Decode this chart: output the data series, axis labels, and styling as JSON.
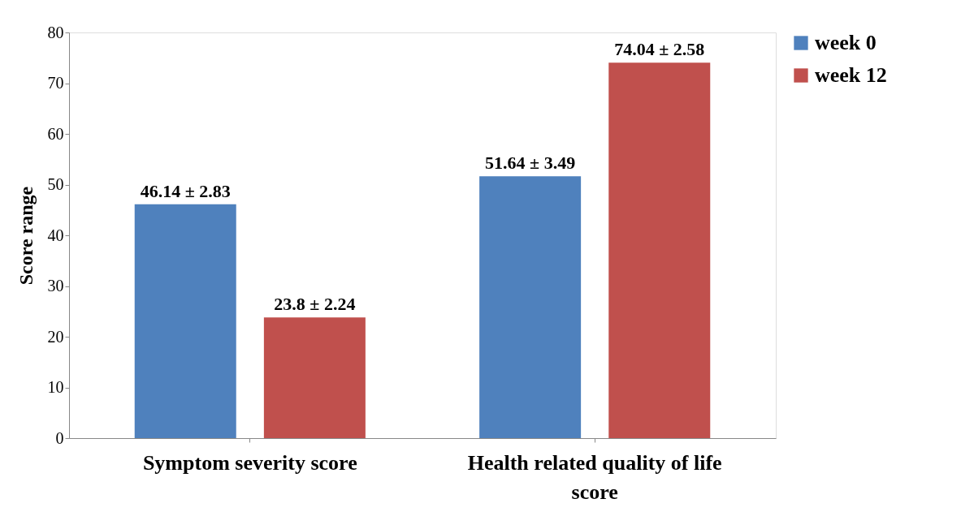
{
  "chart_data": {
    "type": "bar",
    "ylabel": "Score range",
    "categories": [
      "Symptom severity score",
      "Health related quality of life score"
    ],
    "series": [
      {
        "name": "week 0",
        "color": "#4f81bd",
        "values": [
          46.14,
          51.64
        ],
        "value_labels": [
          "46.14 ± 2.83",
          "51.64 ± 3.49"
        ]
      },
      {
        "name": "week 12",
        "color": "#c0504d",
        "values": [
          23.8,
          74.04
        ],
        "value_labels": [
          "23.8 ± 2.24",
          "74.04 ± 2.58"
        ]
      }
    ],
    "ylim": [
      0,
      80
    ],
    "yticks": [
      0,
      10,
      20,
      30,
      40,
      50,
      60,
      70,
      80
    ],
    "grid": false,
    "legend": "right"
  }
}
